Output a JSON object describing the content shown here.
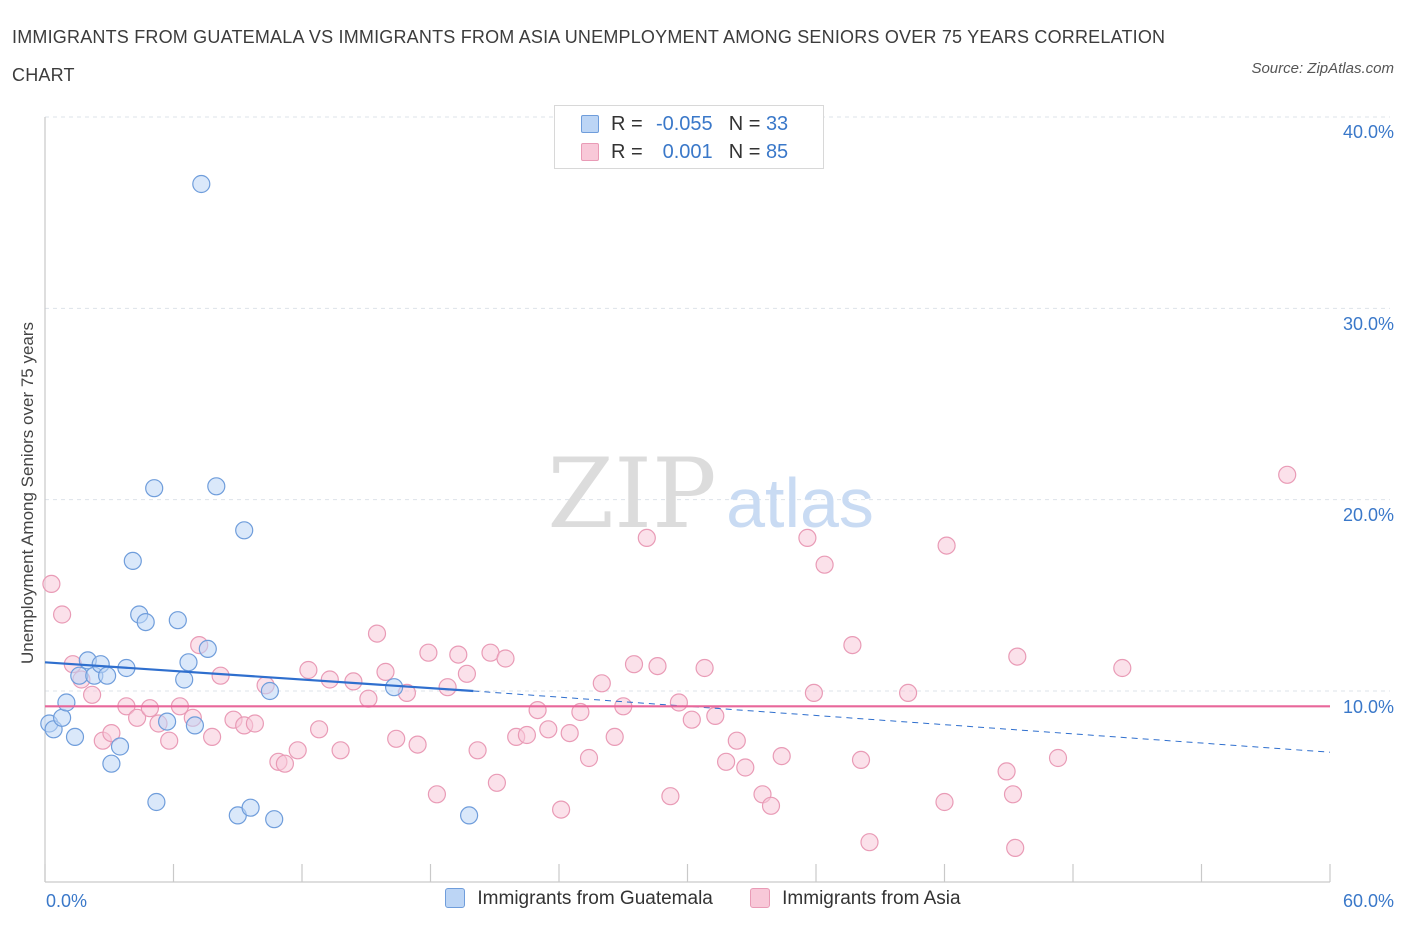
{
  "title": "IMMIGRANTS FROM GUATEMALA VS IMMIGRANTS FROM ASIA UNEMPLOYMENT AMONG SENIORS OVER 75 YEARS CORRELATION CHART",
  "source": "Source: ZipAtlas.com",
  "watermark": {
    "zip": "ZIP",
    "atlas": "atlas"
  },
  "legend": {
    "r_label": "R =",
    "n_label": "N =",
    "rows": [
      {
        "r": "-0.055",
        "n": "33"
      },
      {
        "r": "0.001",
        "n": "85"
      }
    ]
  },
  "colors": {
    "guatemala_fill": "#bcd5f5",
    "guatemala_stroke": "#6f9ddb",
    "guatemala_line": "#2f6fce",
    "asia_fill": "#f8c8d8",
    "asia_stroke": "#e99bb6",
    "asia_line": "#e8679a",
    "axis_text": "#3a78c9",
    "grid": "#dde3ea"
  },
  "chart_data": {
    "type": "scatter",
    "title": "IMMIGRANTS FROM GUATEMALA VS IMMIGRANTS FROM ASIA UNEMPLOYMENT AMONG SENIORS OVER 75 YEARS CORRELATION CHART",
    "xlabel": "",
    "ylabel": "Unemployment Among Seniors over 75 years",
    "xlim": [
      0,
      60
    ],
    "ylim": [
      0,
      40
    ],
    "x_tick_labels": [
      "0.0%",
      "60.0%"
    ],
    "y_ticks": [
      10,
      20,
      30,
      40
    ],
    "y_tick_labels": [
      "10.0%",
      "20.0%",
      "30.0%",
      "40.0%"
    ],
    "series": [
      {
        "name": "Immigrants from Guatemala",
        "r": -0.055,
        "n": 33,
        "trend": {
          "x0": 0,
          "y0": 11.5,
          "x_solid_end": 20,
          "y_solid_end": 10.0,
          "x1": 60,
          "y1": 6.8
        },
        "points": [
          [
            0.2,
            8.3
          ],
          [
            0.4,
            8.0
          ],
          [
            0.8,
            8.6
          ],
          [
            1.0,
            9.4
          ],
          [
            1.4,
            7.6
          ],
          [
            1.6,
            10.8
          ],
          [
            2.0,
            11.6
          ],
          [
            2.3,
            10.8
          ],
          [
            2.6,
            11.4
          ],
          [
            2.9,
            10.8
          ],
          [
            3.5,
            7.1
          ],
          [
            3.1,
            6.2
          ],
          [
            3.8,
            11.2
          ],
          [
            4.1,
            16.8
          ],
          [
            4.4,
            14.0
          ],
          [
            4.7,
            13.6
          ],
          [
            5.1,
            20.6
          ],
          [
            5.2,
            4.2
          ],
          [
            5.7,
            8.4
          ],
          [
            6.2,
            13.7
          ],
          [
            6.5,
            10.6
          ],
          [
            6.7,
            11.5
          ],
          [
            7.0,
            8.2
          ],
          [
            7.3,
            36.5
          ],
          [
            7.6,
            12.2
          ],
          [
            8.0,
            20.7
          ],
          [
            9.0,
            3.5
          ],
          [
            9.3,
            18.4
          ],
          [
            9.6,
            3.9
          ],
          [
            10.5,
            10.0
          ],
          [
            10.7,
            3.3
          ],
          [
            16.3,
            10.2
          ],
          [
            19.8,
            3.5
          ]
        ]
      },
      {
        "name": "Immigrants from Asia",
        "r": 0.001,
        "n": 85,
        "trend": {
          "x0": 0,
          "y0": 9.2,
          "x1": 60,
          "y1": 9.2
        },
        "points": [
          [
            0.3,
            15.6
          ],
          [
            0.8,
            14.0
          ],
          [
            1.3,
            11.4
          ],
          [
            1.7,
            10.6
          ],
          [
            2.2,
            9.8
          ],
          [
            2.7,
            7.4
          ],
          [
            3.1,
            7.8
          ],
          [
            3.8,
            9.2
          ],
          [
            4.3,
            8.6
          ],
          [
            4.9,
            9.1
          ],
          [
            5.3,
            8.3
          ],
          [
            5.8,
            7.4
          ],
          [
            6.3,
            9.2
          ],
          [
            6.9,
            8.6
          ],
          [
            7.2,
            12.4
          ],
          [
            7.8,
            7.6
          ],
          [
            8.2,
            10.8
          ],
          [
            8.8,
            8.5
          ],
          [
            9.3,
            8.2
          ],
          [
            9.8,
            8.3
          ],
          [
            10.3,
            10.3
          ],
          [
            10.9,
            6.3
          ],
          [
            11.2,
            6.2
          ],
          [
            11.8,
            6.9
          ],
          [
            12.3,
            11.1
          ],
          [
            12.8,
            8.0
          ],
          [
            13.3,
            10.6
          ],
          [
            13.8,
            6.9
          ],
          [
            14.4,
            10.5
          ],
          [
            15.1,
            9.6
          ],
          [
            15.5,
            13.0
          ],
          [
            15.9,
            11.0
          ],
          [
            16.4,
            7.5
          ],
          [
            16.9,
            9.9
          ],
          [
            17.4,
            7.2
          ],
          [
            17.9,
            12.0
          ],
          [
            18.3,
            4.6
          ],
          [
            18.8,
            10.2
          ],
          [
            19.3,
            11.9
          ],
          [
            19.7,
            10.9
          ],
          [
            20.2,
            6.9
          ],
          [
            20.8,
            12.0
          ],
          [
            21.1,
            5.2
          ],
          [
            21.5,
            11.7
          ],
          [
            22.0,
            7.6
          ],
          [
            22.5,
            7.7
          ],
          [
            23.0,
            9.0
          ],
          [
            23.5,
            8.0
          ],
          [
            24.1,
            3.8
          ],
          [
            24.5,
            7.8
          ],
          [
            25.0,
            8.9
          ],
          [
            25.4,
            6.5
          ],
          [
            26.0,
            10.4
          ],
          [
            26.6,
            7.6
          ],
          [
            27.0,
            9.2
          ],
          [
            27.5,
            11.4
          ],
          [
            28.1,
            18.0
          ],
          [
            28.6,
            11.3
          ],
          [
            29.2,
            4.5
          ],
          [
            29.6,
            9.4
          ],
          [
            30.2,
            8.5
          ],
          [
            30.8,
            11.2
          ],
          [
            31.3,
            8.7
          ],
          [
            31.8,
            6.3
          ],
          [
            32.3,
            7.4
          ],
          [
            32.7,
            6.0
          ],
          [
            33.5,
            4.6
          ],
          [
            33.9,
            4.0
          ],
          [
            34.4,
            6.6
          ],
          [
            35.6,
            18.0
          ],
          [
            35.9,
            9.9
          ],
          [
            36.4,
            16.6
          ],
          [
            37.7,
            12.4
          ],
          [
            38.1,
            6.4
          ],
          [
            38.5,
            2.1
          ],
          [
            40.3,
            9.9
          ],
          [
            42.0,
            4.2
          ],
          [
            42.1,
            17.6
          ],
          [
            44.9,
            5.8
          ],
          [
            45.2,
            4.6
          ],
          [
            45.3,
            1.8
          ],
          [
            45.4,
            11.8
          ],
          [
            47.3,
            6.5
          ],
          [
            50.3,
            11.2
          ],
          [
            58.0,
            21.3
          ]
        ]
      }
    ]
  },
  "bottom_legend": [
    "Immigrants from Guatemala",
    "Immigrants from Asia"
  ]
}
